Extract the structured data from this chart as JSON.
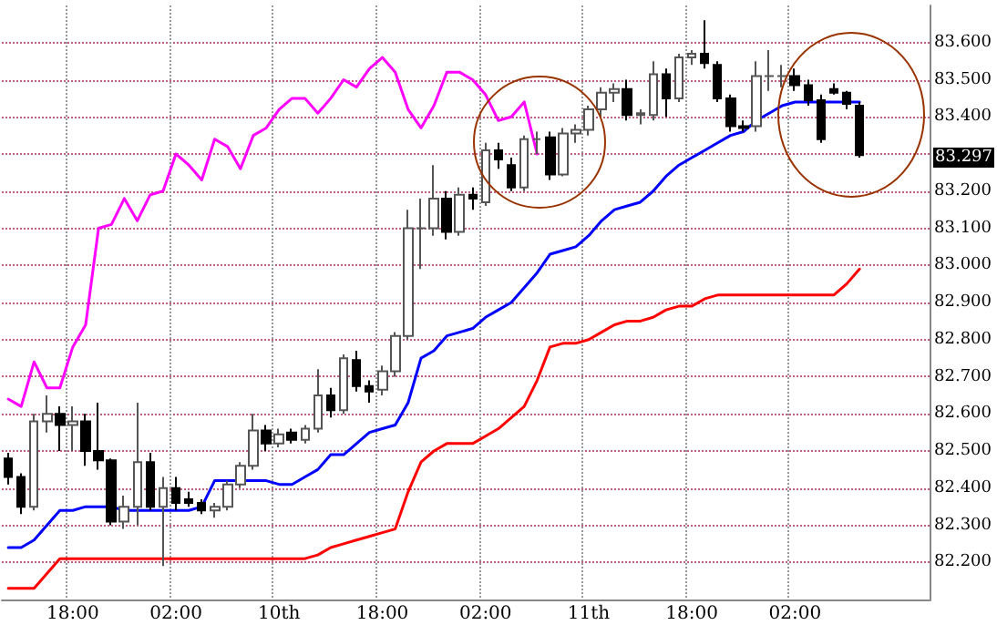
{
  "chart_data": {
    "type": "candlestick",
    "categories": [
      null,
      null,
      null,
      null,
      null,
      "18:00",
      null,
      null,
      null,
      null,
      null,
      null,
      null,
      "02:00",
      null,
      null,
      null,
      null,
      null,
      null,
      null,
      "10th",
      null,
      null,
      null,
      null,
      null,
      null,
      null,
      "18:00",
      null,
      null,
      null,
      null,
      null,
      null,
      null,
      "02:00",
      null,
      null,
      null,
      null,
      null,
      null,
      null,
      "11th",
      null,
      null,
      null,
      null,
      null,
      null,
      null,
      "18:00",
      null,
      null,
      null,
      null,
      null,
      null,
      null,
      "02:00",
      null,
      null,
      null,
      null,
      null,
      null,
      null,
      null,
      null,
      null
    ],
    "series": [
      {
        "type": "line",
        "color": "#0000ff",
        "values": [
          82.24,
          82.24,
          82.26,
          82.3,
          82.34,
          82.34,
          82.35,
          82.35,
          82.35,
          82.34,
          82.34,
          82.34,
          82.34,
          82.34,
          82.34,
          82.35,
          82.42,
          82.42,
          82.42,
          82.42,
          82.42,
          82.41,
          82.41,
          82.43,
          82.45,
          82.49,
          82.49,
          82.52,
          82.55,
          82.56,
          82.57,
          82.63,
          82.75,
          82.77,
          82.81,
          82.82,
          82.83,
          82.86,
          82.88,
          82.9,
          82.94,
          82.98,
          83.03,
          83.04,
          83.05,
          83.08,
          83.12,
          83.15,
          83.16,
          83.17,
          83.2,
          83.24,
          83.27,
          83.29,
          83.31,
          83.33,
          83.35,
          83.36,
          83.39,
          83.41,
          83.43,
          83.44,
          83.44,
          83.44,
          83.44,
          83.44,
          83.44,
          null,
          null,
          null,
          null,
          null
        ]
      },
      {
        "type": "line",
        "color": "#ff0000",
        "values": [
          82.13,
          82.13,
          82.13,
          82.17,
          82.21,
          82.21,
          82.21,
          82.21,
          82.21,
          82.21,
          82.21,
          82.21,
          82.21,
          82.21,
          82.21,
          82.21,
          82.21,
          82.21,
          82.21,
          82.21,
          82.21,
          82.21,
          82.21,
          82.21,
          82.22,
          82.24,
          82.25,
          82.26,
          82.27,
          82.28,
          82.29,
          82.39,
          82.47,
          82.5,
          82.52,
          82.52,
          82.52,
          82.54,
          82.56,
          82.59,
          82.62,
          82.69,
          82.78,
          82.79,
          82.79,
          82.8,
          82.82,
          82.84,
          82.85,
          82.85,
          82.86,
          82.88,
          82.89,
          82.89,
          82.91,
          82.92,
          82.92,
          82.92,
          82.92,
          82.92,
          82.92,
          82.92,
          82.92,
          82.92,
          82.92,
          82.95,
          82.99,
          null,
          null,
          null,
          null,
          null
        ]
      },
      {
        "type": "line",
        "color": "#ff00ff",
        "values": [
          82.64,
          82.62,
          82.74,
          82.67,
          82.67,
          82.78,
          82.84,
          83.1,
          83.11,
          83.18,
          83.12,
          83.19,
          83.2,
          83.3,
          83.27,
          83.23,
          83.34,
          83.32,
          83.26,
          83.35,
          83.37,
          83.42,
          83.45,
          83.45,
          83.41,
          83.45,
          83.5,
          83.48,
          83.53,
          83.56,
          83.52,
          83.42,
          83.37,
          83.43,
          83.52,
          83.52,
          83.5,
          83.46,
          83.39,
          83.4,
          83.44,
          83.3,
          null,
          null,
          null,
          null,
          null,
          null,
          null,
          null,
          null,
          null,
          null,
          null,
          null,
          null,
          null,
          null,
          null,
          null,
          null,
          null,
          null,
          null,
          null,
          null,
          null,
          null,
          null,
          null,
          null,
          null
        ]
      },
      {
        "colors": [
          "#000000",
          "#000000",
          "#ffffff",
          "#ffffff",
          "#000000",
          "#ffffff",
          "#000000",
          "#000000",
          "#000000",
          "#ffffff",
          "#ffffff",
          "#000000",
          "#ffffff",
          "#000000",
          "#000000",
          "#000000",
          "#ffffff",
          "#ffffff",
          "#ffffff",
          "#ffffff",
          "#000000",
          "#ffffff",
          "#000000",
          "#ffffff",
          "#ffffff",
          "#000000",
          "#ffffff",
          "#000000",
          "#000000",
          "#ffffff",
          "#ffffff",
          "#ffffff",
          "#555555",
          "#ffffff",
          "#000000",
          "#ffffff",
          "#000000",
          "#ffffff",
          "#000000",
          "#000000",
          "#ffffff",
          "#555555",
          "#000000",
          "#ffffff",
          "#ffffff",
          "#ffffff",
          "#ffffff",
          "#ffffff",
          "#000000",
          "#ffffff",
          "#ffffff",
          "#000000",
          "#ffffff",
          "#ffffff",
          "#000000",
          "#000000",
          "#000000",
          "#000000",
          "#ffffff",
          "#555555",
          "#555555",
          "#000000",
          "#000000",
          "#000000",
          "#000000",
          "#000000",
          "#000000",
          null,
          null,
          null,
          null,
          null
        ],
        "ohlc": [
          [
            82.48,
            82.495,
            82.41,
            82.43
          ],
          [
            82.43,
            82.44,
            82.33,
            82.35
          ],
          [
            82.35,
            82.6,
            82.34,
            82.58
          ],
          [
            82.58,
            82.65,
            82.55,
            82.6
          ],
          [
            82.6,
            82.62,
            82.5,
            82.57
          ],
          [
            82.57,
            82.62,
            82.5,
            82.58
          ],
          [
            82.58,
            82.6,
            82.46,
            82.5
          ],
          [
            82.5,
            82.63,
            82.45,
            82.475
          ],
          [
            82.475,
            82.48,
            82.3,
            82.31
          ],
          [
            82.31,
            82.38,
            82.29,
            82.35
          ],
          [
            82.35,
            82.63,
            82.3,
            82.47
          ],
          [
            82.47,
            82.495,
            82.34,
            82.35
          ],
          [
            82.35,
            82.43,
            82.19,
            82.4
          ],
          [
            82.4,
            82.43,
            82.34,
            82.36
          ],
          [
            82.37,
            82.39,
            82.35,
            82.36
          ],
          [
            82.36,
            82.37,
            82.33,
            82.34
          ],
          [
            82.34,
            82.36,
            82.32,
            82.35
          ],
          [
            82.35,
            82.42,
            82.34,
            82.41
          ],
          [
            82.41,
            82.47,
            82.4,
            82.46
          ],
          [
            82.46,
            82.6,
            82.45,
            82.555
          ],
          [
            82.555,
            82.57,
            82.5,
            82.52
          ],
          [
            82.52,
            82.56,
            82.51,
            82.545
          ],
          [
            82.55,
            82.56,
            82.52,
            82.53
          ],
          [
            82.53,
            82.57,
            82.52,
            82.56
          ],
          [
            82.56,
            82.72,
            82.55,
            82.65
          ],
          [
            82.65,
            82.67,
            82.59,
            82.61
          ],
          [
            82.61,
            82.76,
            82.6,
            82.75
          ],
          [
            82.745,
            82.77,
            82.66,
            82.675
          ],
          [
            82.675,
            82.69,
            82.63,
            82.66
          ],
          [
            82.665,
            82.73,
            82.65,
            82.715
          ],
          [
            82.715,
            82.82,
            82.7,
            82.81
          ],
          [
            82.81,
            83.15,
            82.8,
            83.1
          ],
          [
            83.1,
            83.18,
            82.99,
            83.1
          ],
          [
            83.1,
            83.27,
            83.08,
            83.18
          ],
          [
            83.18,
            83.2,
            83.07,
            83.09
          ],
          [
            83.09,
            83.21,
            83.08,
            83.19
          ],
          [
            83.19,
            83.21,
            83.15,
            83.18
          ],
          [
            83.17,
            83.33,
            83.16,
            83.31
          ],
          [
            83.31,
            83.33,
            83.26,
            83.285
          ],
          [
            83.27,
            83.29,
            83.2,
            83.21
          ],
          [
            83.21,
            83.35,
            83.2,
            83.34
          ],
          [
            83.34,
            83.36,
            83.3,
            83.34
          ],
          [
            83.345,
            83.36,
            83.23,
            83.245
          ],
          [
            83.245,
            83.37,
            83.24,
            83.355
          ],
          [
            83.355,
            83.38,
            83.33,
            83.365
          ],
          [
            83.365,
            83.43,
            83.35,
            83.42
          ],
          [
            83.42,
            83.48,
            83.4,
            83.465
          ],
          [
            83.465,
            83.49,
            83.44,
            83.475
          ],
          [
            83.475,
            83.5,
            83.39,
            83.405
          ],
          [
            83.405,
            83.42,
            83.38,
            83.41
          ],
          [
            83.405,
            83.55,
            83.39,
            83.515
          ],
          [
            83.515,
            83.53,
            83.4,
            83.45
          ],
          [
            83.45,
            83.57,
            83.44,
            83.56
          ],
          [
            83.56,
            83.58,
            83.54,
            83.57
          ],
          [
            83.57,
            83.66,
            83.53,
            83.545
          ],
          [
            83.54,
            83.55,
            83.44,
            83.45
          ],
          [
            83.45,
            83.46,
            83.36,
            83.375
          ],
          [
            83.375,
            83.39,
            83.36,
            83.37
          ],
          [
            83.375,
            83.55,
            83.36,
            83.51
          ],
          [
            83.51,
            83.58,
            83.47,
            83.51
          ],
          [
            83.51,
            83.54,
            83.48,
            83.51
          ],
          [
            83.51,
            83.53,
            83.47,
            83.485
          ],
          [
            83.485,
            83.5,
            83.43,
            83.445
          ],
          [
            83.445,
            83.46,
            83.33,
            83.34
          ],
          [
            83.475,
            83.49,
            83.46,
            83.465
          ],
          [
            83.465,
            83.47,
            83.42,
            83.435
          ],
          [
            83.43,
            83.44,
            83.29,
            83.297
          ],
          null,
          null,
          null,
          null,
          null
        ]
      }
    ],
    "ylim": [
      82.1,
      83.7
    ],
    "yticks": [
      {
        "value": 82.2,
        "label": "82.200"
      },
      {
        "value": 82.3,
        "label": "82.300"
      },
      {
        "value": 82.4,
        "label": "82.400"
      },
      {
        "value": 82.5,
        "label": "82.500"
      },
      {
        "value": 82.6,
        "label": "82.600"
      },
      {
        "value": 82.7,
        "label": "82.700"
      },
      {
        "value": 82.8,
        "label": "82.800"
      },
      {
        "value": 82.9,
        "label": "82.900"
      },
      {
        "value": 83.0,
        "label": "83.000"
      },
      {
        "value": 83.1,
        "label": "83.100"
      },
      {
        "value": 83.2,
        "label": "83.200"
      },
      {
        "value": 83.3,
        "label": null
      },
      {
        "value": 83.4,
        "label": "83.400"
      },
      {
        "value": 83.5,
        "label": "83.500"
      },
      {
        "value": 83.6,
        "label": "83.600"
      }
    ],
    "annotations": [
      "83.297"
    ],
    "grid": true,
    "marker": "none",
    "line_style": "solid"
  }
}
